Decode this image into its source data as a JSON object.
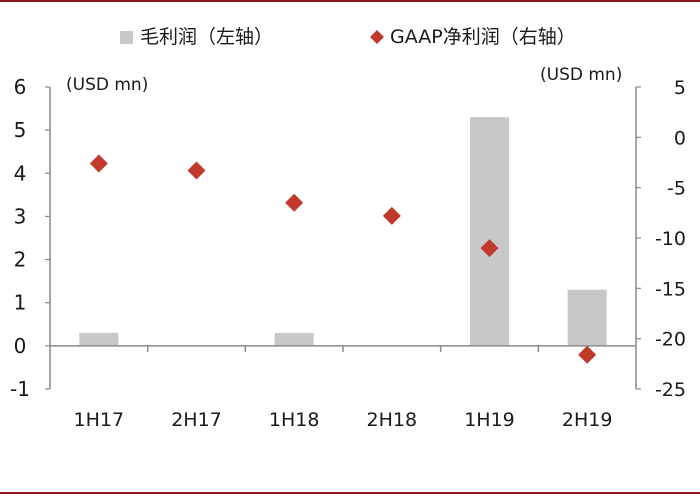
{
  "chart_data": {
    "type": "bar",
    "categories": [
      "1H17",
      "2H17",
      "1H18",
      "2H18",
      "1H19",
      "2H19"
    ],
    "series": [
      {
        "name": "毛利润（左轴）",
        "type": "bar",
        "axis": "left",
        "values": [
          0.3,
          0,
          0.3,
          0,
          5.3,
          1.3
        ]
      },
      {
        "name": "GAAP净利润（右轴）",
        "type": "scatter",
        "axis": "right",
        "values": [
          -2.6,
          -3.3,
          -6.5,
          -7.8,
          -11.0,
          -21.6
        ]
      }
    ],
    "left_axis": {
      "unit": "(USD mn)",
      "ylim": [
        -1,
        6
      ],
      "ticks": [
        6,
        5,
        4,
        3,
        2,
        1,
        0,
        -1
      ]
    },
    "right_axis": {
      "unit": "(USD mn)",
      "ylim": [
        -25,
        5
      ],
      "ticks": [
        5,
        0,
        -5,
        -10,
        -15,
        -20,
        -25
      ]
    },
    "legend_position": "top",
    "colors": {
      "bar": "#c8c8c8",
      "marker": "#c0392b",
      "axis": "#8a8a8a",
      "frame": "#8b1a1a"
    }
  }
}
